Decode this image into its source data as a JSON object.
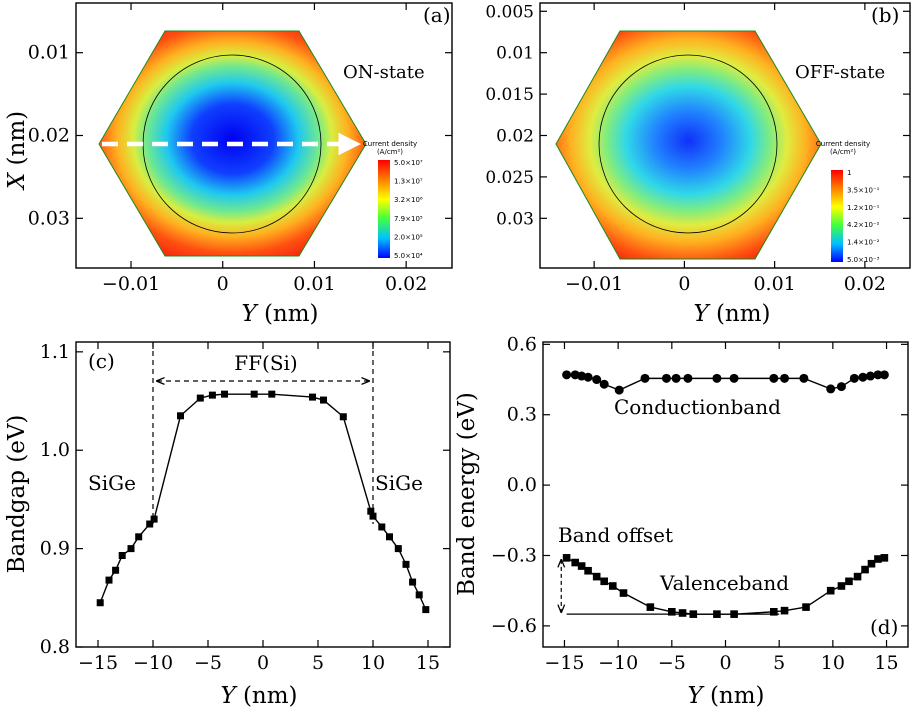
{
  "chart_data": [
    {
      "panel": "(a)",
      "type": "heatmap",
      "state_label": "ON-state",
      "xlabel": "Y (nm)",
      "ylabel": "X (nm)",
      "xlim": [
        -0.016,
        0.025
      ],
      "ylim": [
        0.036,
        0.004
      ],
      "xticks": [
        "−0.01",
        "0",
        "0.01",
        "0.02"
      ],
      "xtick_values": [
        -0.01,
        0,
        0.01,
        0.02
      ],
      "yticks": [
        "0.01",
        "0.02",
        "0.03"
      ],
      "ytick_values": [
        0.01,
        0.02,
        0.03
      ],
      "colorbar": {
        "title": "Current density",
        "unit": "(A/cm²)",
        "labels": [
          "5.0×10⁷",
          "1.3×10⁷",
          "3.2×10⁶",
          "7.9×10⁵",
          "2.0×10⁵",
          "5.0×10⁴"
        ]
      }
    },
    {
      "panel": "(b)",
      "type": "heatmap",
      "state_label": "OFF-state",
      "xlabel": "Y (nm)",
      "ylabel": "",
      "xlim": [
        -0.016,
        0.025
      ],
      "ylim": [
        0.036,
        0.004
      ],
      "xticks": [
        "−0.01",
        "0",
        "0.01",
        "0.02"
      ],
      "xtick_values": [
        -0.01,
        0,
        0.01,
        0.02
      ],
      "yticks": [
        "0.005",
        "0.01",
        "0.015",
        "0.02",
        "0.025",
        "0.03"
      ],
      "ytick_values": [
        0.005,
        0.01,
        0.015,
        0.02,
        0.025,
        0.03
      ],
      "colorbar": {
        "title": "Current density",
        "unit": "(A/cm²)",
        "labels": [
          "1",
          "3.5×10⁻¹",
          "1.2×10⁻¹",
          "4.2×10⁻²",
          "1.4×10⁻²",
          "5.0×10⁻³"
        ]
      }
    },
    {
      "panel": "(c)",
      "type": "line",
      "xlabel": "Y (nm)",
      "ylabel": "Bandgap (eV)",
      "xlim": [
        -17,
        17
      ],
      "ylim": [
        0.8,
        1.11
      ],
      "xticks": [
        "−15",
        "−10",
        "−5",
        "0",
        "5",
        "10",
        "15"
      ],
      "xtick_values": [
        -15,
        -10,
        -5,
        0,
        5,
        10,
        15
      ],
      "yticks": [
        "0.8",
        "0.9",
        "1.0",
        "1.1"
      ],
      "ytick_values": [
        0.8,
        0.9,
        1.0,
        1.1
      ],
      "annotations": {
        "left": "SiGe",
        "right": "SiGe",
        "center": "FF(Si)"
      },
      "series": [
        {
          "name": "Bandgap",
          "x": [
            -14.8,
            -14.0,
            -13.4,
            -12.8,
            -12.0,
            -11.3,
            -10.3,
            -9.9,
            -7.5,
            -5.7,
            -4.6,
            -3.5,
            -0.8,
            0.8,
            4.5,
            5.5,
            7.3,
            9.8,
            10.0,
            10.8,
            11.5,
            12.3,
            13.0,
            13.6,
            14.2,
            14.8
          ],
          "y": [
            0.845,
            0.868,
            0.878,
            0.893,
            0.9,
            0.912,
            0.925,
            0.93,
            1.035,
            1.053,
            1.056,
            1.057,
            1.057,
            1.057,
            1.054,
            1.051,
            1.034,
            0.938,
            0.933,
            0.922,
            0.912,
            0.9,
            0.884,
            0.866,
            0.853,
            0.838
          ]
        }
      ]
    },
    {
      "panel": "(d)",
      "type": "line",
      "xlabel": "Y (nm)",
      "ylabel": "Band energy (eV)",
      "xlim": [
        -17,
        17
      ],
      "ylim": [
        -0.69,
        0.61
      ],
      "xticks": [
        "−15",
        "−10",
        "−5",
        "0",
        "5",
        "10",
        "15"
      ],
      "xtick_values": [
        -15,
        -10,
        -5,
        0,
        5,
        10,
        15
      ],
      "yticks": [
        "0.6",
        "0.3",
        "0.0",
        "−0.3",
        "−0.6"
      ],
      "ytick_values": [
        0.6,
        0.3,
        0.0,
        -0.3,
        -0.6
      ],
      "annotations": {
        "conduction": "Conductionband",
        "valence": "Valenceband",
        "offset": "Band offset"
      },
      "series": [
        {
          "name": "Conductionband",
          "marker": "circle",
          "x": [
            -14.8,
            -14.0,
            -13.4,
            -12.8,
            -12.0,
            -11.3,
            -9.9,
            -7.5,
            -5.5,
            -4.6,
            -3.5,
            -0.8,
            0.8,
            4.5,
            5.5,
            7.3,
            9.8,
            10.8,
            12.0,
            12.8,
            13.5,
            14.2,
            14.8
          ],
          "y": [
            0.47,
            0.47,
            0.465,
            0.46,
            0.45,
            0.43,
            0.405,
            0.455,
            0.455,
            0.455,
            0.455,
            0.455,
            0.455,
            0.455,
            0.455,
            0.455,
            0.41,
            0.42,
            0.455,
            0.46,
            0.465,
            0.47,
            0.47
          ]
        },
        {
          "name": "Valenceband",
          "marker": "square",
          "x": [
            -14.8,
            -14.0,
            -13.4,
            -12.8,
            -12.0,
            -11.3,
            -10.5,
            -9.5,
            -7.0,
            -5.0,
            -4.0,
            -3.0,
            -0.8,
            0.8,
            4.5,
            5.5,
            7.5,
            9.8,
            10.8,
            11.5,
            12.3,
            13.0,
            13.6,
            14.2,
            14.8
          ],
          "y": [
            -0.31,
            -0.33,
            -0.345,
            -0.365,
            -0.39,
            -0.41,
            -0.43,
            -0.46,
            -0.52,
            -0.54,
            -0.545,
            -0.55,
            -0.55,
            -0.55,
            -0.54,
            -0.535,
            -0.52,
            -0.45,
            -0.43,
            -0.41,
            -0.39,
            -0.36,
            -0.335,
            -0.315,
            -0.31
          ]
        }
      ]
    }
  ]
}
